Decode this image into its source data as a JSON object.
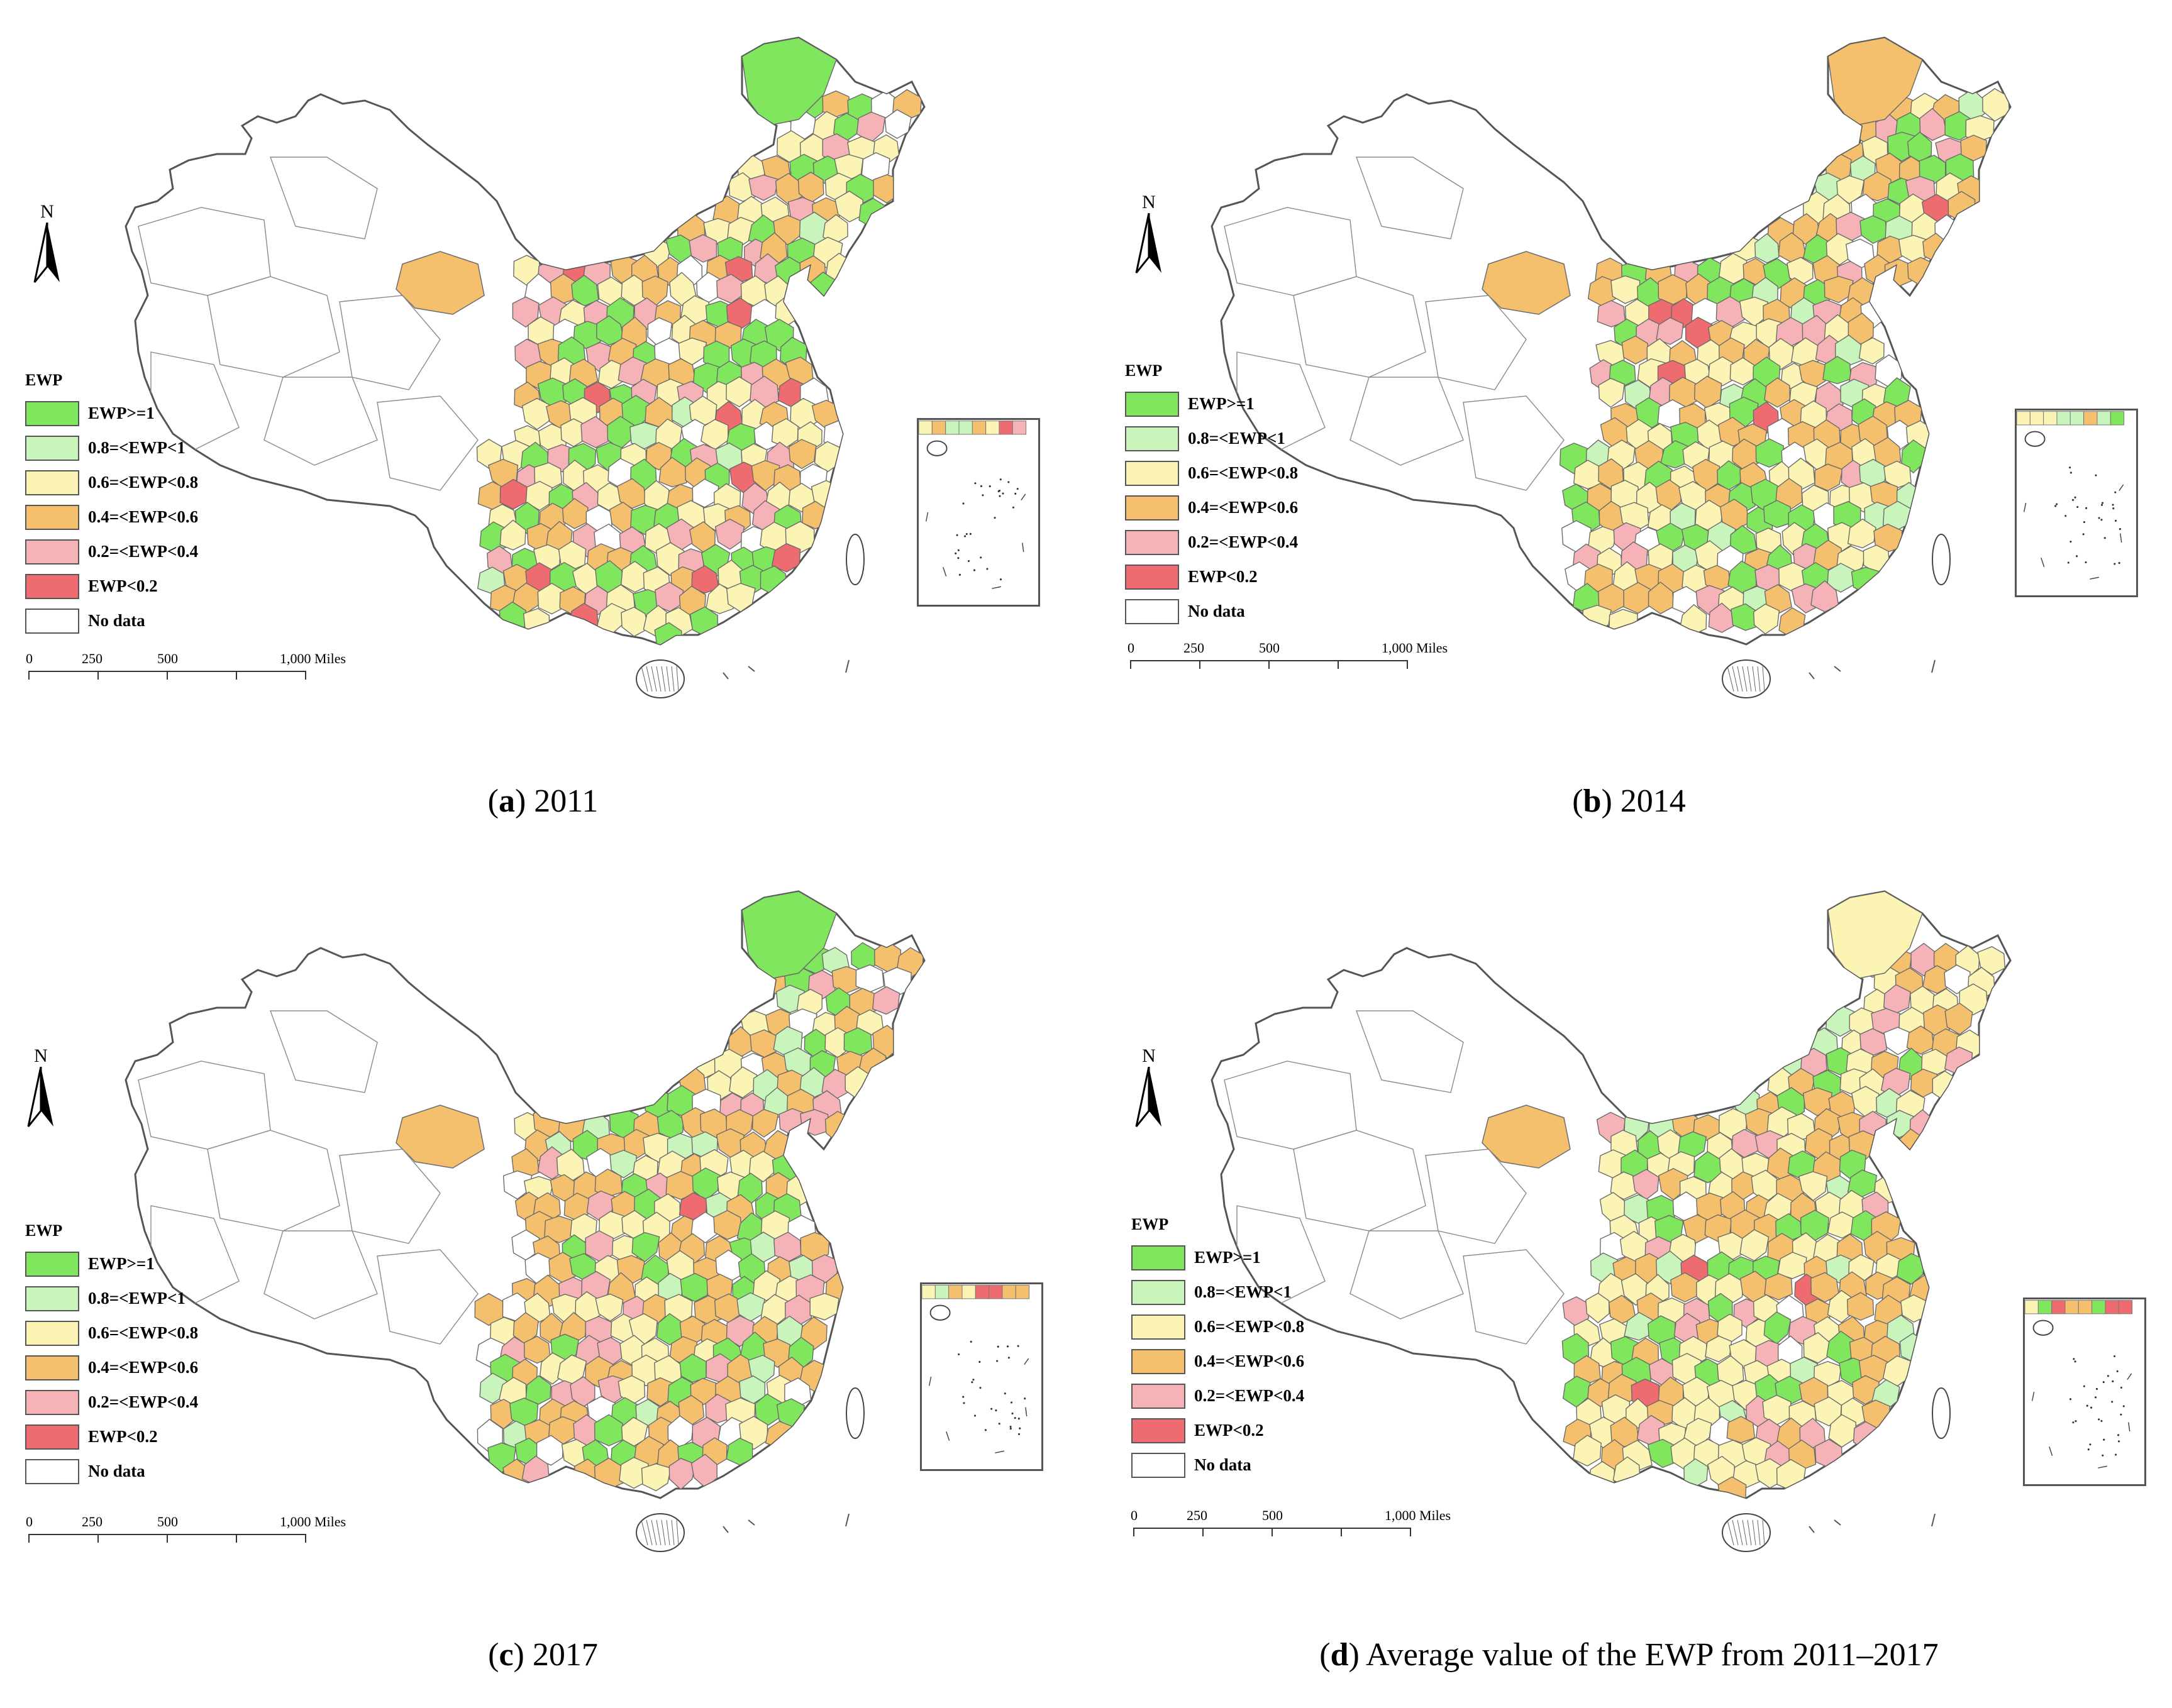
{
  "colors": {
    "class_ge1": "#7fe65e",
    "class_08_1": "#c9f5bd",
    "class_06_08": "#fbf4b4",
    "class_04_06": "#f5c06e",
    "class_02_04": "#f5b3b8",
    "class_lt02": "#ee6b6f",
    "no_data": "#ffffff",
    "boundary": "#555555"
  },
  "legend": {
    "title": "EWP",
    "items": [
      {
        "label": "EWP>=1",
        "color": "#7fe65e"
      },
      {
        "label": "0.8=<EWP<1",
        "color": "#c9f5bd"
      },
      {
        "label": "0.6=<EWP<0.8",
        "color": "#fbf4b4"
      },
      {
        "label": "0.4=<EWP<0.6",
        "color": "#f5c06e"
      },
      {
        "label": "0.2=<EWP<0.4",
        "color": "#f5b3b8"
      },
      {
        "label": "EWP<0.2",
        "color": "#ee6b6f"
      },
      {
        "label": "No data",
        "color": "#ffffff"
      }
    ]
  },
  "scale_bar": {
    "ticks": [
      "0",
      "250",
      "500",
      "1,000 Miles"
    ]
  },
  "north_arrow": {
    "letter": "N",
    "icon": "north-arrow-icon"
  },
  "panels": [
    {
      "letter": "a",
      "caption": "2011"
    },
    {
      "letter": "b",
      "caption": "2014"
    },
    {
      "letter": "c",
      "caption": "2017"
    },
    {
      "letter": "d",
      "caption": "Average value of the EWP from 2011–2017"
    }
  ]
}
